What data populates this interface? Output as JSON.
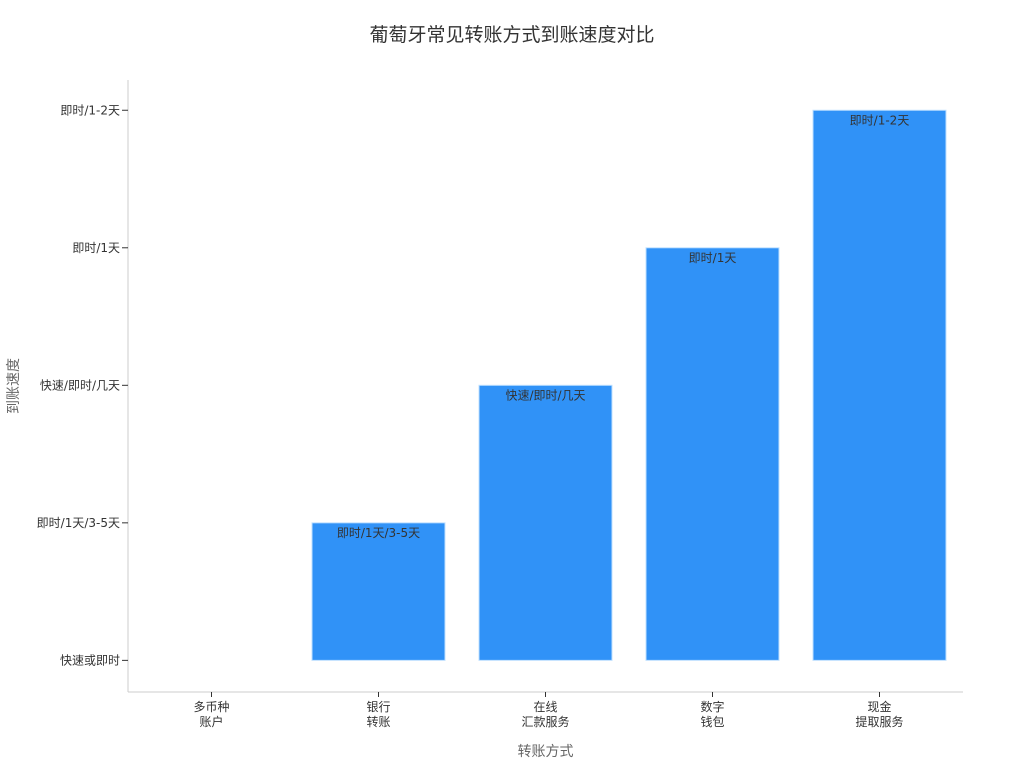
{
  "chart_data": {
    "type": "bar",
    "title": "葡萄牙常见转账方式到账速度对比",
    "xlabel": "转账方式",
    "ylabel": "到账速度",
    "categories": [
      "多币种\n账户",
      "银行\n转账",
      "在线\n汇款服务",
      "数字\n钱包",
      "现金\n提取服务"
    ],
    "y_categories": [
      "快速或即时",
      "即时/1天/3-5天",
      "快速/即时/几天",
      "即时/1天",
      "即时/1-2天"
    ],
    "values": [
      0,
      1,
      2,
      3,
      4
    ],
    "data_labels": [
      "",
      "即时/1天/3-5天",
      "快速/即时/几天",
      "即时/1天",
      "即时/1-2天"
    ],
    "ylim": [
      -0.23,
      4.22
    ],
    "grid": false,
    "bar_color": "#3092F7"
  }
}
